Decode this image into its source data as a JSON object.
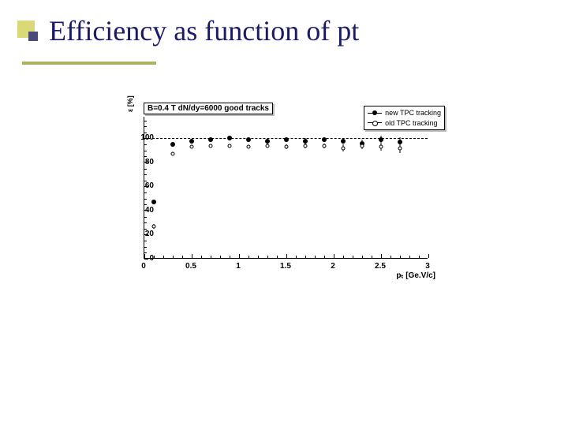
{
  "title": "Efficiency as function of pt",
  "chart": {
    "type": "scatter",
    "top_label": "B=0.4 T  dN/dy=6000  good tracks",
    "ylabel": "ε [%]",
    "xlabel": "pₜ [Ge.V/c]",
    "xlim": [
      0,
      3
    ],
    "ylim": [
      0,
      118
    ],
    "reference_y": 100,
    "xticks": [
      0,
      0.5,
      1,
      1.5,
      2,
      2.5,
      3
    ],
    "yticks": [
      0,
      20,
      40,
      60,
      80,
      100
    ],
    "background_color": "#ffffff",
    "axis_color": "#000000",
    "title_color": "#1a1a66",
    "title_fontsize": 36,
    "tick_fontsize": 10,
    "legend": {
      "items": [
        {
          "label": "new TPC tracking",
          "marker": "filled",
          "color": "#000000"
        },
        {
          "label": "old TPC tracking",
          "marker": "open",
          "color": "#000000"
        }
      ]
    },
    "series": [
      {
        "name": "new TPC tracking",
        "marker": "filled",
        "color": "#000000",
        "points": [
          {
            "x": 0.1,
            "y": 47,
            "err": 2
          },
          {
            "x": 0.3,
            "y": 95,
            "err": 1
          },
          {
            "x": 0.5,
            "y": 98,
            "err": 1
          },
          {
            "x": 0.7,
            "y": 99,
            "err": 1
          },
          {
            "x": 0.9,
            "y": 100,
            "err": 1
          },
          {
            "x": 1.1,
            "y": 99,
            "err": 1
          },
          {
            "x": 1.3,
            "y": 98,
            "err": 1.5
          },
          {
            "x": 1.5,
            "y": 99,
            "err": 1.5
          },
          {
            "x": 1.7,
            "y": 98,
            "err": 2
          },
          {
            "x": 1.9,
            "y": 99,
            "err": 2
          },
          {
            "x": 2.1,
            "y": 98,
            "err": 2.5
          },
          {
            "x": 2.3,
            "y": 96,
            "err": 3
          },
          {
            "x": 2.5,
            "y": 99,
            "err": 3
          },
          {
            "x": 2.7,
            "y": 97,
            "err": 4
          }
        ]
      },
      {
        "name": "old TPC tracking",
        "marker": "open",
        "color": "#000000",
        "points": [
          {
            "x": 0.1,
            "y": 27,
            "err": 2
          },
          {
            "x": 0.3,
            "y": 87,
            "err": 1
          },
          {
            "x": 0.5,
            "y": 93,
            "err": 1
          },
          {
            "x": 0.7,
            "y": 94,
            "err": 1
          },
          {
            "x": 0.9,
            "y": 94,
            "err": 1
          },
          {
            "x": 1.1,
            "y": 93,
            "err": 1
          },
          {
            "x": 1.3,
            "y": 94,
            "err": 1.5
          },
          {
            "x": 1.5,
            "y": 93,
            "err": 2
          },
          {
            "x": 1.7,
            "y": 94,
            "err": 2
          },
          {
            "x": 1.9,
            "y": 94,
            "err": 2
          },
          {
            "x": 2.1,
            "y": 92,
            "err": 3
          },
          {
            "x": 2.3,
            "y": 94,
            "err": 3
          },
          {
            "x": 2.5,
            "y": 93,
            "err": 3.5
          },
          {
            "x": 2.7,
            "y": 92,
            "err": 4
          }
        ]
      }
    ]
  }
}
